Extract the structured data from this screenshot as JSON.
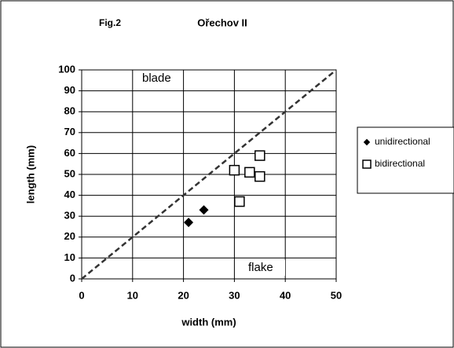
{
  "chart_data": {
    "type": "scatter",
    "figure_label": "Fig.2",
    "title": "Ořechov II",
    "xlabel": "width (mm)",
    "ylabel": "length (mm)",
    "annotations": [
      "blade",
      "flake"
    ],
    "xlim": [
      0,
      50
    ],
    "xticks": [
      0,
      10,
      20,
      30,
      40,
      50
    ],
    "ylim": [
      0,
      100
    ],
    "yticks": [
      0,
      10,
      20,
      30,
      40,
      50,
      60,
      70,
      80,
      90,
      100
    ],
    "grid": true,
    "legend": "right",
    "reference_line": {
      "x": [
        0,
        50
      ],
      "values": [
        0,
        100
      ],
      "color": "#333333"
    },
    "series": [
      {
        "name": "unidirectional",
        "marker": "diamond",
        "color": "#000000",
        "x": [
          21,
          24
        ],
        "values": [
          27,
          33
        ]
      },
      {
        "name": "bidirectional",
        "marker": "square",
        "color": "#000000",
        "x": [
          30,
          33,
          35,
          35,
          31
        ],
        "values": [
          52,
          51,
          59,
          49,
          37
        ]
      }
    ]
  }
}
